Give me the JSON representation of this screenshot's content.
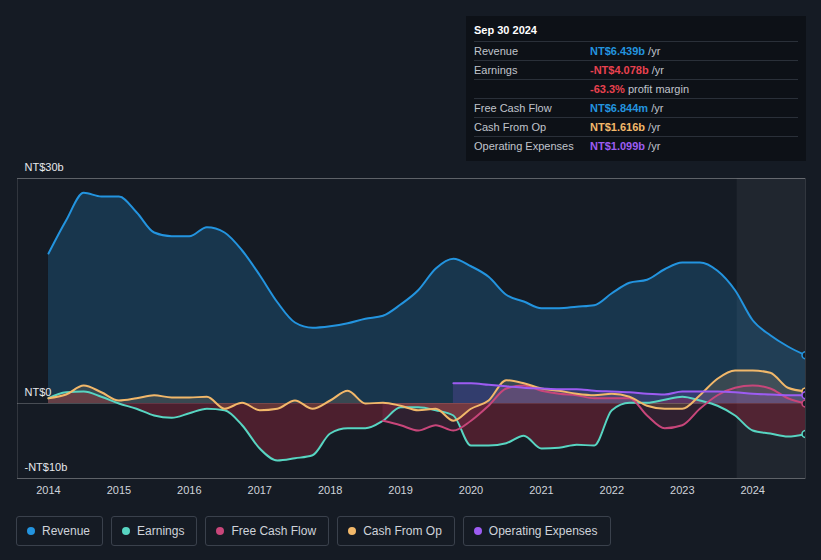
{
  "chart_data": {
    "type": "line",
    "x": [
      2014,
      2014.25,
      2014.5,
      2014.75,
      2015,
      2015.25,
      2015.5,
      2015.75,
      2016,
      2016.25,
      2016.5,
      2016.75,
      2017,
      2017.25,
      2017.5,
      2017.75,
      2018,
      2018.25,
      2018.5,
      2018.75,
      2019,
      2019.25,
      2019.5,
      2019.75,
      2020,
      2020.25,
      2020.5,
      2020.75,
      2021,
      2021.25,
      2021.5,
      2021.75,
      2022,
      2022.25,
      2022.5,
      2022.75,
      2023,
      2023.25,
      2023.5,
      2023.75,
      2024,
      2024.25,
      2024.5,
      2024.75
    ],
    "series": [
      {
        "name": "Revenue",
        "color": "#2394df",
        "values": [
          20.0,
          24.4,
          28.1,
          27.6,
          27.6,
          25.5,
          22.8,
          22.3,
          22.3,
          23.5,
          22.8,
          20.4,
          17.1,
          13.5,
          10.8,
          10.1,
          10.3,
          10.7,
          11.3,
          11.7,
          13.2,
          15.1,
          18.0,
          19.3,
          18.3,
          16.9,
          14.5,
          13.6,
          12.7,
          12.7,
          12.9,
          13.1,
          14.7,
          16.1,
          16.5,
          17.9,
          18.8,
          18.8,
          17.7,
          15.1,
          11.1,
          9.1,
          7.6,
          6.439
        ]
      },
      {
        "name": "Earnings",
        "color": "#58d5c2",
        "values": [
          0.7,
          1.5,
          1.6,
          0.9,
          0,
          -0.7,
          -1.6,
          -1.9,
          -1.3,
          -0.7,
          -0.9,
          -2.9,
          -6.0,
          -7.6,
          -7.3,
          -6.9,
          -4.0,
          -3.3,
          -3.3,
          -2.3,
          -0.5,
          -0.5,
          -0.9,
          -1.6,
          -5.6,
          -5.6,
          -5.3,
          -4.3,
          -6.0,
          -5.9,
          -5.5,
          -5.6,
          -0.9,
          0.1,
          0.1,
          0.5,
          0.9,
          0.4,
          -0.3,
          -1.6,
          -3.6,
          -4.0,
          -4.4,
          -4.078
        ]
      },
      {
        "name": "Free Cash Flow",
        "color": "#c8467a",
        "values": [
          null,
          null,
          null,
          null,
          null,
          null,
          null,
          null,
          null,
          null,
          null,
          null,
          null,
          null,
          null,
          null,
          null,
          null,
          null,
          -2.3,
          -2.9,
          -3.6,
          -2.9,
          -3.6,
          -2.3,
          -0.3,
          2.0,
          2.4,
          1.7,
          1.3,
          1.1,
          0.7,
          0.7,
          0.7,
          -1.6,
          -3.3,
          -2.9,
          -0.7,
          1.1,
          2.1,
          2.4,
          2.0,
          0.7,
          0.006844
        ]
      },
      {
        "name": "Cash From Op",
        "color": "#f2b86a",
        "values": [
          0.7,
          1.2,
          2.4,
          1.5,
          0.4,
          0.7,
          1.1,
          0.8,
          0.8,
          0.9,
          -0.7,
          0.1,
          -0.9,
          -0.7,
          0.4,
          -0.7,
          0.4,
          1.7,
          0,
          0.1,
          -0.3,
          -0.9,
          -0.7,
          -2.3,
          -0.7,
          0.4,
          3.1,
          2.7,
          2.0,
          1.7,
          1.3,
          1.1,
          1.3,
          0.9,
          -0.3,
          -0.7,
          -0.7,
          1.1,
          3.3,
          4.4,
          4.4,
          4.1,
          2.1,
          1.616
        ]
      },
      {
        "name": "Operating Expenses",
        "color": "#9d5cf2",
        "values": [
          null,
          null,
          null,
          null,
          null,
          null,
          null,
          null,
          null,
          null,
          null,
          null,
          null,
          null,
          null,
          null,
          null,
          null,
          null,
          null,
          null,
          null,
          null,
          2.7,
          2.7,
          2.5,
          2.3,
          2.1,
          2.0,
          1.9,
          1.9,
          1.7,
          1.6,
          1.5,
          1.3,
          1.2,
          1.6,
          1.6,
          1.6,
          1.5,
          1.3,
          1.2,
          1.1,
          1.099
        ]
      }
    ],
    "xlim": [
      2013.56,
      2024.75
    ],
    "xticks": [
      2014,
      2015,
      2016,
      2017,
      2018,
      2019,
      2020,
      2021,
      2022,
      2023,
      2024
    ],
    "ylim": [
      -10,
      30
    ],
    "yticks": [
      {
        "value": 30,
        "label": "NT$30b"
      },
      {
        "value": 0,
        "label": "NT$0"
      },
      {
        "value": -10,
        "label": "-NT$10b"
      }
    ],
    "grid": true,
    "legend": "bottom",
    "shaded_x": [
      2023.78,
      2024.75
    ],
    "tooltip": {
      "title": "Sep 30 2024",
      "rows": [
        {
          "label": "Revenue",
          "value": "NT$6.439b",
          "unit": "/yr",
          "color": "#2394df"
        },
        {
          "label": "Earnings",
          "value": "-NT$4.078b",
          "unit": "/yr",
          "color": "#e8414f"
        },
        {
          "label": null,
          "value": "-63.3%",
          "unit": "profit margin",
          "color": "#e8414f"
        },
        {
          "label": "Free Cash Flow",
          "value": "NT$6.844m",
          "unit": "/yr",
          "color": "#2394df"
        },
        {
          "label": "Cash From Op",
          "value": "NT$1.616b",
          "unit": "/yr",
          "color": "#f2b86a"
        },
        {
          "label": "Operating Expenses",
          "value": "NT$1.099b",
          "unit": "/yr",
          "color": "#9d5cf2"
        }
      ]
    }
  }
}
